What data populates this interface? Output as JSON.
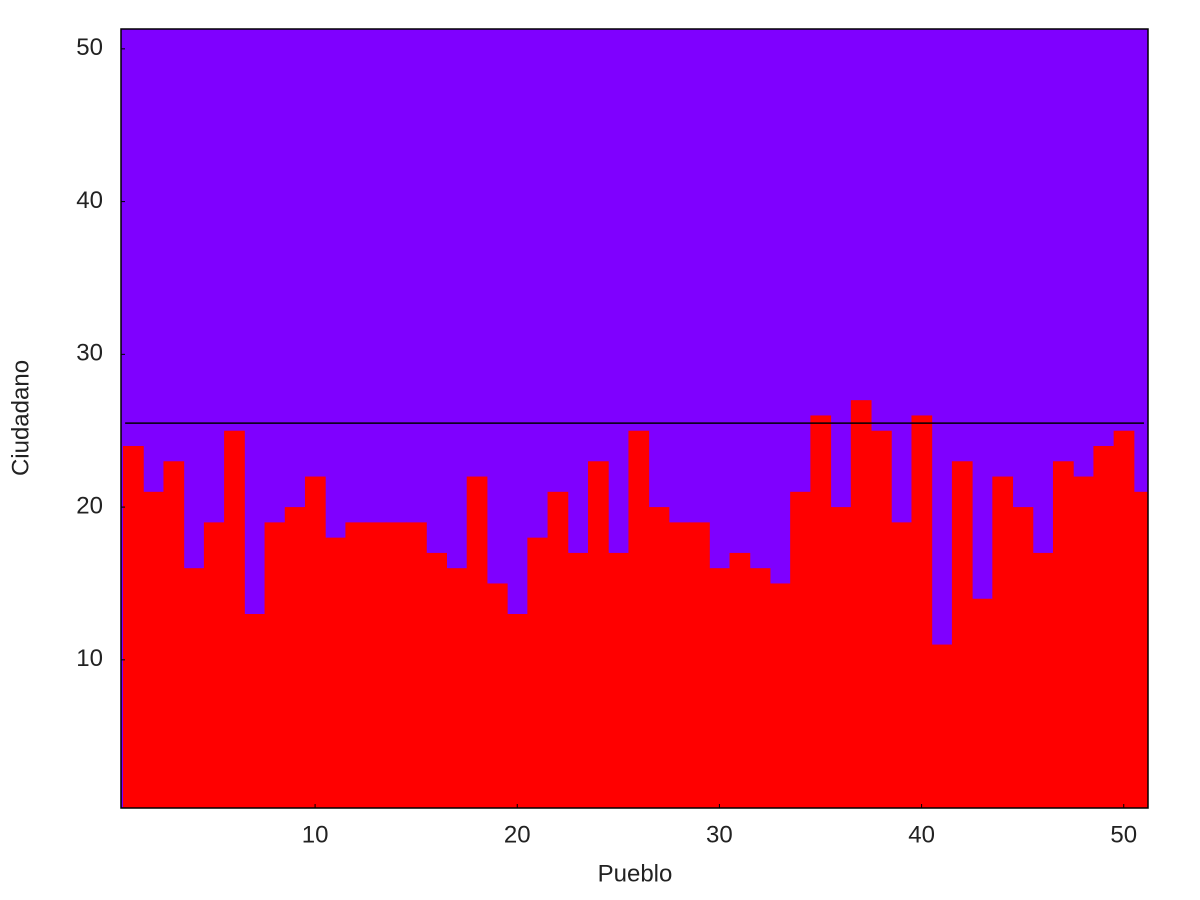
{
  "chart_data": {
    "type": "bar",
    "x_label": "Pueblo",
    "y_label": "Ciudadano",
    "x": [
      1,
      2,
      3,
      4,
      5,
      6,
      7,
      8,
      9,
      10,
      11,
      12,
      13,
      14,
      15,
      16,
      17,
      18,
      19,
      20,
      21,
      22,
      23,
      24,
      25,
      26,
      27,
      28,
      29,
      30,
      31,
      32,
      33,
      34,
      35,
      36,
      37,
      38,
      39,
      40,
      41,
      42,
      43,
      44,
      45,
      46,
      47,
      48,
      49,
      50,
      51
    ],
    "values": [
      24,
      21,
      23,
      16,
      19,
      25,
      13,
      19,
      20,
      22,
      18,
      19,
      19,
      19,
      19,
      17,
      16,
      22,
      15,
      13,
      18,
      21,
      17,
      23,
      17,
      25,
      20,
      19,
      19,
      16,
      17,
      16,
      15,
      21,
      26,
      20,
      27,
      25,
      19,
      26,
      11,
      23,
      14,
      22,
      20,
      17,
      23,
      22,
      24,
      25,
      21
    ],
    "color": "#ff0000",
    "background": "#7f00ff",
    "hline": 25.5,
    "hline_color": "#000000",
    "xlim": [
      0.4,
      51.2
    ],
    "ylim": [
      0.3,
      51.3
    ],
    "xticks": [
      10,
      20,
      30,
      40,
      50
    ],
    "yticks": [
      10,
      20,
      30,
      40,
      50
    ]
  }
}
